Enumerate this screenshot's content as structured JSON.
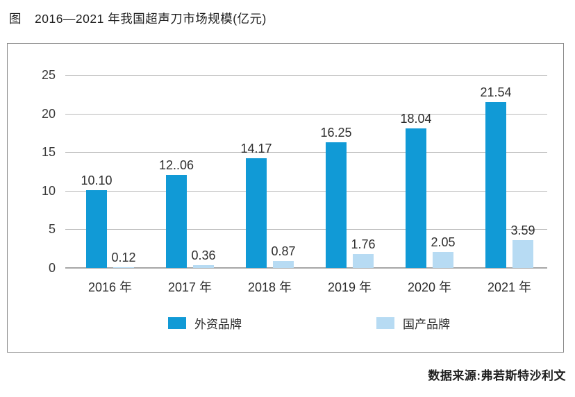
{
  "title": {
    "prefix": "图",
    "text": "2016—2021 年我国超声刀市场规模(亿元)"
  },
  "source_text": "数据来源:弗若斯特沙利文",
  "colors": {
    "foreign": "#119ad6",
    "domestic": "#b7dbf3",
    "grid": "#b9b9b9",
    "axis": "#a6a6a6",
    "frame": "#8a8a8a"
  },
  "chart_data": {
    "type": "bar",
    "title": "2016—2021 年我国超声刀市场规模(亿元)",
    "categories": [
      "2016 年",
      "2017 年",
      "2018 年",
      "2019 年",
      "2020 年",
      "2021 年"
    ],
    "series": [
      {
        "name": "外资品牌",
        "color_key": "foreign",
        "values": [
          10.1,
          12.06,
          14.17,
          16.25,
          18.04,
          21.54
        ],
        "labels": [
          "10.10",
          "12..06",
          "14.17",
          "16.25",
          "18.04",
          "21.54"
        ]
      },
      {
        "name": "国产品牌",
        "color_key": "domestic",
        "values": [
          0.12,
          0.36,
          0.87,
          1.76,
          2.05,
          3.59
        ],
        "labels": [
          "0.12",
          "0.36",
          "0.87",
          "1.76",
          "2.05",
          "3.59"
        ]
      }
    ],
    "ylim": [
      0,
      25
    ],
    "yticks": [
      0,
      5,
      10,
      15,
      20,
      25
    ],
    "grid": true,
    "legend_position": "bottom-inside"
  }
}
